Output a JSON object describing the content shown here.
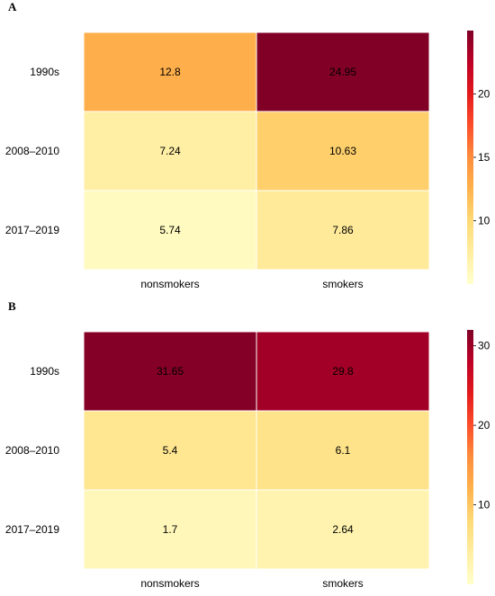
{
  "chart_data": [
    {
      "type": "heatmap",
      "panel": "A",
      "rows": [
        "1990s",
        "2008–2010",
        "2017–2019"
      ],
      "columns": [
        "nonsmokers",
        "smokers"
      ],
      "values": [
        [
          12.8,
          24.95
        ],
        [
          7.24,
          10.63
        ],
        [
          5.74,
          7.86
        ]
      ],
      "colorbar": {
        "min": 5,
        "max": 25,
        "ticks": [
          10,
          15,
          20
        ]
      },
      "colormap": [
        "#ffffcc",
        "#ffeda0",
        "#fed976",
        "#feb24c",
        "#fd8d3c",
        "#fc4e2a",
        "#e31a1c",
        "#bd0026",
        "#800026"
      ]
    },
    {
      "type": "heatmap",
      "panel": "B",
      "rows": [
        "1990s",
        "2008–2010",
        "2017–2019"
      ],
      "columns": [
        "nonsmokers",
        "smokers"
      ],
      "values": [
        [
          31.65,
          29.8
        ],
        [
          5.4,
          6.1
        ],
        [
          1.7,
          2.64
        ]
      ],
      "colorbar": {
        "min": 0,
        "max": 32,
        "ticks": [
          10,
          20,
          30
        ]
      },
      "colormap": [
        "#ffffcc",
        "#ffeda0",
        "#fed976",
        "#feb24c",
        "#fd8d3c",
        "#fc4e2a",
        "#e31a1c",
        "#bd0026",
        "#800026"
      ]
    }
  ]
}
